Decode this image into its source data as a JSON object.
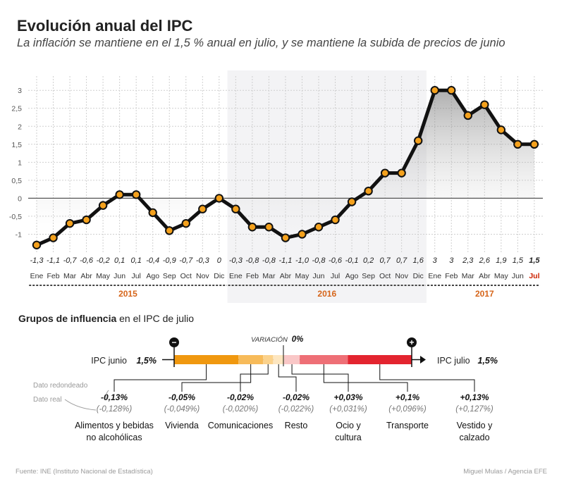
{
  "title": "Evolución anual del IPC",
  "subtitle": "La inflación se mantiene en el 1,5 % anual en julio, y se mantiene la subida de precios de junio",
  "chart_data": {
    "type": "line",
    "title": "Evolución anual del IPC",
    "ylim": [
      -1.5,
      3.2
    ],
    "yticks": [
      -1,
      -0.5,
      0,
      0.5,
      1,
      1.5,
      2,
      2.5,
      3
    ],
    "ytick_labels": [
      "-1",
      "-0,5",
      "0",
      "0,5",
      "1",
      "1,5",
      "2",
      "2,5",
      "3"
    ],
    "categories": [
      "Ene",
      "Feb",
      "Mar",
      "Abr",
      "May",
      "Jun",
      "Jul",
      "Ago",
      "Sep",
      "Oct",
      "Nov",
      "Dic",
      "Ene",
      "Feb",
      "Mar",
      "Abr",
      "May",
      "Jun",
      "Jul",
      "Ago",
      "Sep",
      "Oct",
      "Nov",
      "Dic",
      "Ene",
      "Feb",
      "Mar",
      "Abr",
      "May",
      "Jun",
      "Jul"
    ],
    "values": [
      -1.3,
      -1.1,
      -0.7,
      -0.6,
      -0.2,
      0.1,
      0.1,
      -0.4,
      -0.9,
      -0.7,
      -0.3,
      0,
      -0.3,
      -0.8,
      -0.8,
      -1.1,
      -1.0,
      -0.8,
      -0.6,
      -0.1,
      0.2,
      0.7,
      0.7,
      1.6,
      3,
      3,
      2.3,
      2.6,
      1.9,
      1.5,
      1.5
    ],
    "value_labels": [
      "-1,3",
      "-1,1",
      "-0,7",
      "-0,6",
      "-0,2",
      "0,1",
      "0,1",
      "-0,4",
      "-0,9",
      "-0,7",
      "-0,3",
      "0",
      "-0,3",
      "-0,8",
      "-0,8",
      "-1,1",
      "-1,0",
      "-0,8",
      "-0,6",
      "-0,1",
      "0,2",
      "0,7",
      "0,7",
      "1,6",
      "3",
      "3",
      "2,3",
      "2,6",
      "1,9",
      "1,5",
      "1,5"
    ],
    "years": [
      {
        "label": "2015",
        "start": 0,
        "end": 11
      },
      {
        "label": "2016",
        "start": 12,
        "end": 23
      },
      {
        "label": "2017",
        "start": 24,
        "end": 30
      }
    ]
  },
  "influence": {
    "title_bold": "Grupos de influencia",
    "title_rest": " en el IPC de julio",
    "variation_label": "VARIACIÓN",
    "variation_value": "0%",
    "start_label": "IPC junio",
    "start_value": "1,5%",
    "end_label": "IPC julio",
    "end_value": "1,5%",
    "minus_sign": "−",
    "plus_sign": "+",
    "legend_rounded": "Dato redondeado",
    "legend_real": "Dato real",
    "groups": [
      {
        "name": "Alimentos y bebidas no alcohólicas",
        "lines": [
          "Alimentos y bebidas",
          "no alcohólicas"
        ],
        "rounded": "-0,13%",
        "real": "(-0,128%)",
        "value": -0.128,
        "color": "#f0980f"
      },
      {
        "name": "Vivienda",
        "lines": [
          "Vivienda"
        ],
        "rounded": "-0,05%",
        "real": "(-0,049%)",
        "value": -0.049,
        "color": "#f7bb5a"
      },
      {
        "name": "Comunicaciones",
        "lines": [
          "Comunicaciones"
        ],
        "rounded": "-0,02%",
        "real": "(-0,020%)",
        "value": -0.02,
        "color": "#fbd28c"
      },
      {
        "name": "Resto",
        "lines": [
          "Resto"
        ],
        "rounded": "-0,02%",
        "real": "(-0,022%)",
        "value": -0.022,
        "color": "#fde6c0"
      },
      {
        "name": "Ocio y cultura",
        "lines": [
          "Ocio y",
          "cultura"
        ],
        "rounded": "+0,03%",
        "real": "(+0,031%)",
        "value": 0.031,
        "color": "#f9c7c7"
      },
      {
        "name": "Transporte",
        "lines": [
          "Transporte"
        ],
        "rounded": "+0,1%",
        "real": "(+0,096%)",
        "value": 0.096,
        "color": "#ee6f76"
      },
      {
        "name": "Vestido y calzado",
        "lines": [
          "Vestido y",
          "calzado"
        ],
        "rounded": "+0,13%",
        "real": "(+0,127%)",
        "value": 0.127,
        "color": "#e3242f"
      }
    ]
  },
  "footer": {
    "source": "Fuente: INE (Instituto Nacional de Estadística)",
    "credit": "Miguel Mulas / Agencia EFE"
  },
  "colors": {
    "line": "#111111",
    "marker": "#f4a11d",
    "year": "#d6651a",
    "highlight": "#cc2200"
  }
}
